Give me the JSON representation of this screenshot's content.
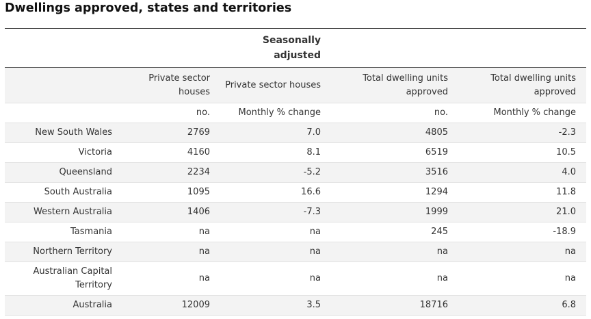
{
  "title": "Dwellings approved, states and territories",
  "table": {
    "group_header": [
      "Seasonally",
      "adjusted"
    ],
    "column_headers": [
      [
        "",
        ""
      ],
      [
        "Private sector",
        "houses"
      ],
      [
        "",
        "Private sector houses"
      ],
      [
        "Total dwelling units",
        "approved"
      ],
      [
        "Total dwelling units",
        "approved"
      ]
    ],
    "units": [
      "",
      "no.",
      "Monthly % change",
      "no.",
      "Monthly % change"
    ],
    "rows": [
      {
        "label": [
          "",
          "New South Wales"
        ],
        "values": [
          "2769",
          "7.0",
          "4805",
          "-2.3"
        ]
      },
      {
        "label": [
          "",
          "Victoria"
        ],
        "values": [
          "4160",
          "8.1",
          "6519",
          "10.5"
        ]
      },
      {
        "label": [
          "",
          "Queensland"
        ],
        "values": [
          "2234",
          "-5.2",
          "3516",
          "4.0"
        ]
      },
      {
        "label": [
          "",
          "South Australia"
        ],
        "values": [
          "1095",
          "16.6",
          "1294",
          "11.8"
        ]
      },
      {
        "label": [
          "",
          "Western Australia"
        ],
        "values": [
          "1406",
          "-7.3",
          "1999",
          "21.0"
        ]
      },
      {
        "label": [
          "",
          "Tasmania"
        ],
        "values": [
          "na",
          "na",
          "245",
          "-18.9"
        ]
      },
      {
        "label": [
          "",
          "Northern Territory"
        ],
        "values": [
          "na",
          "na",
          "na",
          "na"
        ]
      },
      {
        "label": [
          "Australian Capital",
          "Territory"
        ],
        "values": [
          "na",
          "na",
          "na",
          "na"
        ]
      },
      {
        "label": [
          "",
          "Australia"
        ],
        "values": [
          "12009",
          "3.5",
          "18716",
          "6.8"
        ]
      }
    ]
  }
}
